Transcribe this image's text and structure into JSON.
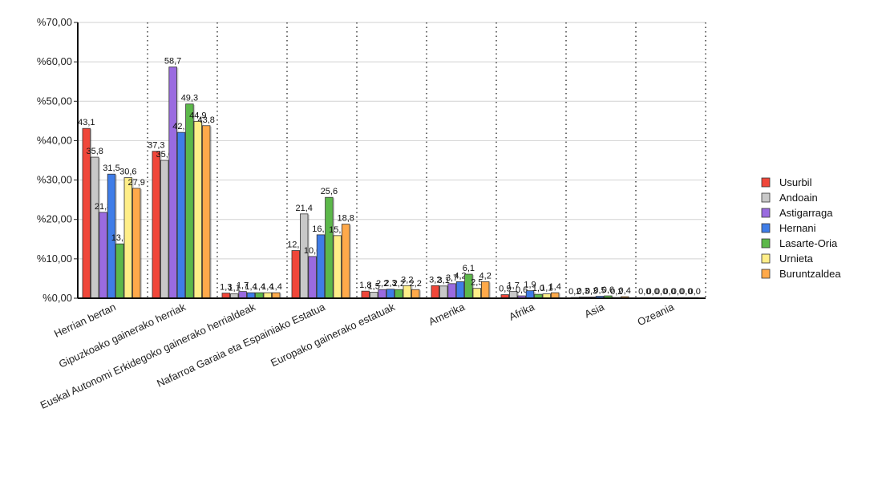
{
  "chart_data": {
    "type": "bar",
    "categories": [
      "Herrian bertan",
      "Gipuzkoako gainerako herriak",
      "Euskal Autonomi Erkidegoko gainerako herrialdeak",
      "Nafarroa Garaia eta Espainiako Estatua",
      "Europako gainerako estatuak",
      "Amerika",
      "Afrika",
      "Asia",
      "Ozeania"
    ],
    "series": [
      {
        "name": "Usurbil",
        "color": "#f0473a",
        "values": [
          43.1,
          37.3,
          1.3,
          12.1,
          1.8,
          3.2,
          0.9,
          0.2,
          0.0
        ],
        "labels": [
          "43,1",
          "37,3",
          "1,3",
          "12,1",
          "1,8",
          "3,2",
          "0,9",
          "0,2",
          "0,0"
        ]
      },
      {
        "name": "Andoain",
        "color": "#c8c8c8",
        "values": [
          35.8,
          35.0,
          1.1,
          21.4,
          1.5,
          3.1,
          1.7,
          0.3,
          0.0
        ],
        "labels": [
          "35,8",
          "35,0",
          "1,1",
          "21,4",
          "1,5",
          "3,1",
          "1,7",
          "0,3",
          "0,0"
        ]
      },
      {
        "name": "Astigarraga",
        "color": "#9a6be0",
        "values": [
          21.8,
          58.7,
          1.7,
          10.6,
          2.2,
          3.7,
          0.6,
          0.3,
          0.0
        ],
        "labels": [
          "21,8",
          "58,7",
          "1,7",
          "10,6",
          "2,2",
          "3,7",
          "0,6",
          "0,3",
          "0,0"
        ]
      },
      {
        "name": "Hernani",
        "color": "#3f7de8",
        "values": [
          31.5,
          42.1,
          1.4,
          16.1,
          2.3,
          4.2,
          1.9,
          0.5,
          0.0
        ],
        "labels": [
          "31,5",
          "42,1",
          "1,4",
          "16,1",
          "2,3",
          "4,2",
          "1,9",
          "0,5",
          "0,0"
        ]
      },
      {
        "name": "Lasarte-Oria",
        "color": "#5cb84a",
        "values": [
          13.8,
          49.3,
          1.4,
          25.6,
          2.2,
          6.1,
          1.0,
          0.6,
          0.0
        ],
        "labels": [
          "13,8",
          "49,3",
          "1,4",
          "25,6",
          "2,2",
          "6,1",
          "1,0",
          "0,6",
          "0,0"
        ]
      },
      {
        "name": "Urnieta",
        "color": "#ffee88",
        "values": [
          30.6,
          44.9,
          1.4,
          15.9,
          3.2,
          2.5,
          1.1,
          0.2,
          0.0
        ],
        "labels": [
          "30,6",
          "44,9",
          "1,4",
          "15,9",
          "3,2",
          "2,5",
          "1,1",
          "0,2",
          "0,0"
        ]
      },
      {
        "name": "Buruntzaldea",
        "color": "#ffa94a",
        "values": [
          27.9,
          43.8,
          1.4,
          18.8,
          2.2,
          4.2,
          1.4,
          0.4,
          0.0
        ],
        "labels": [
          "27,9",
          "43,8",
          "1,4",
          "18,8",
          "2,2",
          "4,2",
          "1,4",
          "0,4",
          "0,0"
        ]
      }
    ],
    "y_ticks": [
      "%0,00",
      "%10,00",
      "%20,00",
      "%30,00",
      "%40,00",
      "%50,00",
      "%60,00",
      "%70,00"
    ],
    "ylim": [
      0,
      70
    ],
    "title": "",
    "xlabel": "",
    "ylabel": "",
    "grid": true,
    "legend_position": "right"
  }
}
